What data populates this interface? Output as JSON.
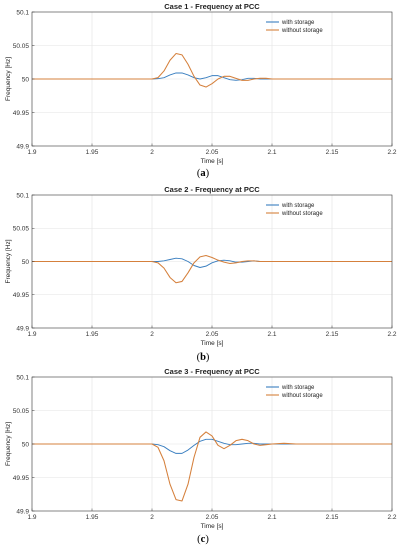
{
  "chart_data": [
    {
      "type": "line",
      "title": "Case 1 - Frequency at PCC",
      "xlabel": "Time [s]",
      "ylabel": "Frequency [Hz]",
      "xlim": [
        1.9,
        2.2
      ],
      "ylim": [
        49.9,
        50.1
      ],
      "xticks": [
        "1.9",
        "1.95",
        "2",
        "2.05",
        "2.1",
        "2.15",
        "2.2"
      ],
      "yticks": [
        "49.9",
        "49.95",
        "50",
        "50.05",
        "50.1"
      ],
      "grid": true,
      "legend_position": "top-right",
      "series": [
        {
          "name": "with storage",
          "color": "#3a7fc0",
          "x": [
            1.9,
            2.0,
            2.005,
            2.01,
            2.015,
            2.02,
            2.025,
            2.03,
            2.035,
            2.04,
            2.045,
            2.05,
            2.055,
            2.06,
            2.065,
            2.07,
            2.075,
            2.08,
            2.085,
            2.09,
            2.095,
            2.1,
            2.11,
            2.12,
            2.2
          ],
          "y": [
            50.0,
            50.0,
            50.0005,
            50.002,
            50.006,
            50.009,
            50.009,
            50.006,
            50.002,
            50.0,
            50.002,
            50.005,
            50.005,
            50.002,
            49.999,
            49.998,
            49.999,
            50.001,
            50.001,
            50.0,
            50.0,
            50.0,
            50.0,
            50.0,
            50.0
          ]
        },
        {
          "name": "without storage",
          "color": "#d5803c",
          "x": [
            1.9,
            2.0,
            2.005,
            2.01,
            2.015,
            2.02,
            2.025,
            2.03,
            2.035,
            2.04,
            2.045,
            2.05,
            2.055,
            2.06,
            2.065,
            2.07,
            2.075,
            2.08,
            2.085,
            2.09,
            2.095,
            2.1,
            2.11,
            2.12,
            2.2
          ],
          "y": [
            50.0,
            50.0,
            50.002,
            50.012,
            50.028,
            50.038,
            50.036,
            50.022,
            50.004,
            49.991,
            49.988,
            49.993,
            50.0,
            50.004,
            50.004,
            50.001,
            49.998,
            49.998,
            50.0,
            50.001,
            50.001,
            50.0,
            50.0,
            50.0,
            50.0
          ]
        }
      ]
    },
    {
      "type": "line",
      "title": "Case 2 - Frequency at PCC",
      "xlabel": "Time [s]",
      "ylabel": "Frequency [Hz]",
      "xlim": [
        1.9,
        2.2
      ],
      "ylim": [
        49.9,
        50.1
      ],
      "xticks": [
        "1.9",
        "1.95",
        "2",
        "2.05",
        "2.1",
        "2.15",
        "2.2"
      ],
      "yticks": [
        "49.9",
        "49.95",
        "50",
        "50.05",
        "50.1"
      ],
      "grid": true,
      "legend_position": "top-right",
      "series": [
        {
          "name": "with storage",
          "color": "#3a7fc0",
          "x": [
            1.9,
            2.0,
            2.005,
            2.01,
            2.015,
            2.02,
            2.025,
            2.03,
            2.035,
            2.04,
            2.045,
            2.05,
            2.055,
            2.06,
            2.065,
            2.07,
            2.075,
            2.08,
            2.085,
            2.09,
            2.1,
            2.12,
            2.2
          ],
          "y": [
            50.0,
            50.0,
            50.0,
            50.001,
            50.003,
            50.005,
            50.004,
            50.0,
            49.994,
            49.991,
            49.993,
            49.998,
            50.001,
            50.002,
            50.001,
            49.999,
            49.999,
            50.0,
            50.001,
            50.0,
            50.0,
            50.0,
            50.0
          ]
        },
        {
          "name": "without storage",
          "color": "#d5803c",
          "x": [
            1.9,
            2.0,
            2.005,
            2.01,
            2.015,
            2.02,
            2.025,
            2.03,
            2.035,
            2.04,
            2.045,
            2.05,
            2.055,
            2.06,
            2.065,
            2.07,
            2.075,
            2.08,
            2.085,
            2.09,
            2.1,
            2.12,
            2.2
          ],
          "y": [
            50.0,
            50.0,
            49.998,
            49.99,
            49.976,
            49.968,
            49.97,
            49.983,
            49.998,
            50.007,
            50.009,
            50.006,
            50.002,
            49.999,
            49.997,
            49.998,
            50.0,
            50.001,
            50.001,
            50.0,
            50.0,
            50.0,
            50.0
          ]
        }
      ]
    },
    {
      "type": "line",
      "title": "Case 3 - Frequency at PCC",
      "xlabel": "Time [s]",
      "ylabel": "Frequency [Hz]",
      "xlim": [
        1.9,
        2.2
      ],
      "ylim": [
        49.9,
        50.1
      ],
      "xticks": [
        "1.9",
        "1.95",
        "2",
        "2.05",
        "2.1",
        "2.15",
        "2.2"
      ],
      "yticks": [
        "49.9",
        "49.95",
        "50",
        "50.05",
        "50.1"
      ],
      "grid": true,
      "legend_position": "top-right",
      "series": [
        {
          "name": "with storage",
          "color": "#3a7fc0",
          "x": [
            1.9,
            2.0,
            2.005,
            2.01,
            2.015,
            2.02,
            2.025,
            2.03,
            2.035,
            2.04,
            2.045,
            2.05,
            2.055,
            2.06,
            2.065,
            2.07,
            2.075,
            2.08,
            2.085,
            2.09,
            2.095,
            2.1,
            2.11,
            2.12,
            2.2
          ],
          "y": [
            50.0,
            50.0,
            49.999,
            49.996,
            49.99,
            49.986,
            49.986,
            49.991,
            49.998,
            50.004,
            50.007,
            50.007,
            50.004,
            50.001,
            49.999,
            49.999,
            50.0,
            50.001,
            50.001,
            50.0,
            50.0,
            50.0,
            50.0,
            50.0,
            50.0
          ]
        },
        {
          "name": "without storage",
          "color": "#d5803c",
          "x": [
            1.9,
            2.0,
            2.005,
            2.01,
            2.015,
            2.02,
            2.025,
            2.03,
            2.035,
            2.04,
            2.045,
            2.05,
            2.055,
            2.06,
            2.065,
            2.07,
            2.075,
            2.08,
            2.085,
            2.09,
            2.095,
            2.1,
            2.11,
            2.12,
            2.2
          ],
          "y": [
            50.0,
            50.0,
            49.995,
            49.975,
            49.94,
            49.917,
            49.915,
            49.94,
            49.98,
            50.01,
            50.018,
            50.012,
            49.998,
            49.993,
            49.998,
            50.005,
            50.007,
            50.005,
            50.0,
            49.998,
            49.999,
            50.0,
            50.001,
            50.0,
            50.0
          ]
        }
      ]
    }
  ],
  "captions": [
    "a",
    "b",
    "c"
  ]
}
